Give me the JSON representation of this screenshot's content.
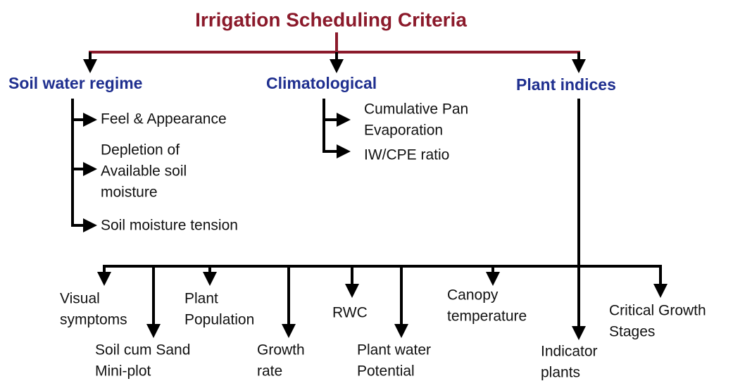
{
  "title": "Irrigation Scheduling Criteria",
  "branches": [
    {
      "label": "Soil water regime",
      "items": [
        {
          "lines": [
            "Feel & Appearance"
          ]
        },
        {
          "lines": [
            "Depletion of",
            "Available soil",
            "moisture"
          ]
        },
        {
          "lines": [
            "Soil moisture tension"
          ]
        }
      ]
    },
    {
      "label": "Climatological",
      "items": [
        {
          "lines": [
            "Cumulative Pan",
            "Evaporation"
          ]
        },
        {
          "lines": [
            "IW/CPE ratio"
          ]
        }
      ]
    },
    {
      "label": "Plant indices",
      "items": [
        {
          "lines": [
            "Visual",
            "symptoms"
          ]
        },
        {
          "lines": [
            "Soil cum Sand",
            "Mini-plot"
          ]
        },
        {
          "lines": [
            "Plant",
            "Population"
          ]
        },
        {
          "lines": [
            "Growth",
            "rate"
          ]
        },
        {
          "lines": [
            "RWC"
          ]
        },
        {
          "lines": [
            "Plant water",
            "Potential"
          ]
        },
        {
          "lines": [
            "Canopy",
            "temperature"
          ]
        },
        {
          "lines": [
            "Indicator",
            "plants"
          ]
        },
        {
          "lines": [
            "Critical Growth",
            "Stages"
          ]
        }
      ]
    }
  ]
}
